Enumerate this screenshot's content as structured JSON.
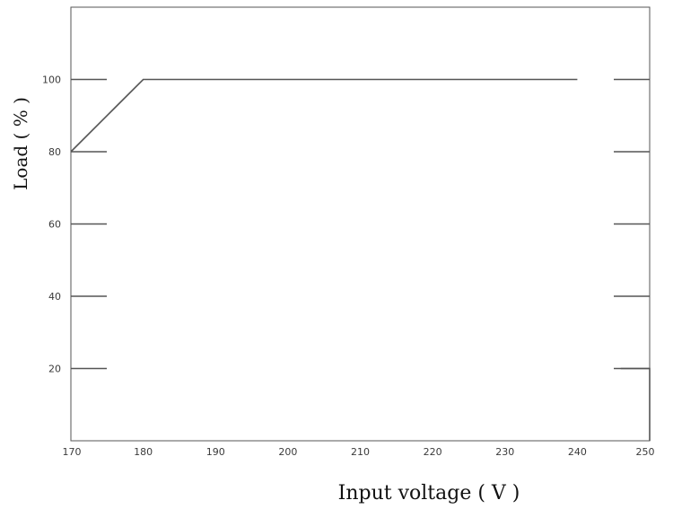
{
  "chart_data": {
    "type": "line",
    "title": "",
    "xlabel": "Input voltage ( V )",
    "ylabel": "Load ( % )",
    "xlim": [
      170,
      250
    ],
    "ylim": [
      0,
      120
    ],
    "x_ticks": [
      "170",
      "180",
      "190",
      "200",
      "210",
      "220",
      "230",
      "240",
      "250"
    ],
    "y_ticks": [
      "20",
      "40",
      "60",
      "80",
      "100"
    ],
    "grid": "tick stubs on left and right edges only",
    "legend": "none",
    "series": [
      {
        "x": [
          170,
          180,
          240
        ],
        "y": [
          80,
          100,
          100
        ]
      },
      {
        "x": [
          246,
          250,
          250
        ],
        "y": [
          20,
          20,
          0
        ]
      }
    ],
    "colors": {
      "line": "#555555",
      "frame": "#555555",
      "ticks": "#555555"
    }
  }
}
